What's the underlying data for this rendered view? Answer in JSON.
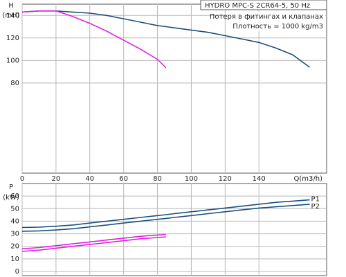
{
  "chart_data": [
    {
      "type": "line",
      "title": "HYDRO MPC-S 2CR64-5, 50 Hz",
      "annotations": [
        "Потеря в фитингах и клапанах",
        "Плотность = 1000 kg/m3"
      ],
      "y_label": "H",
      "y_unit": "(mH)",
      "x_label": "Q(m3/h)",
      "x": [
        0,
        10,
        20,
        30,
        40,
        50,
        60,
        70,
        80,
        85,
        90,
        100,
        110,
        120,
        130,
        140,
        150,
        160,
        170
      ],
      "xlim": [
        0,
        180
      ],
      "xticks": [
        0,
        20,
        40,
        60,
        80,
        100,
        120,
        140
      ],
      "ylim": [
        0,
        150
      ],
      "yticks": [
        80,
        100,
        120,
        140
      ],
      "grid": true,
      "series": [
        {
          "color": "#1b4f7e",
          "values": [
            143,
            144,
            144,
            143,
            142,
            140,
            137,
            134,
            131,
            130,
            129,
            127,
            125,
            122,
            119,
            116,
            111,
            105,
            94
          ]
        },
        {
          "color": "#e020e0",
          "values": [
            143,
            144,
            144,
            139,
            133,
            126,
            118,
            110,
            101,
            93.5,
            null,
            null,
            null,
            null,
            null,
            null,
            null,
            null,
            null
          ]
        }
      ]
    },
    {
      "type": "line",
      "y_label": "P",
      "y_unit": "(kW)",
      "x": [
        0,
        10,
        20,
        30,
        40,
        50,
        60,
        70,
        80,
        85,
        90,
        100,
        110,
        120,
        130,
        140,
        150,
        160,
        170
      ],
      "xlim": [
        0,
        180
      ],
      "ylim": [
        0,
        70
      ],
      "yticks": [
        0,
        10,
        20,
        30,
        40,
        50,
        60
      ],
      "grid": true,
      "series": [
        {
          "name": "P1",
          "color": "#1b4f7e",
          "values": [
            35,
            35.3,
            36,
            37,
            38.5,
            40,
            41.5,
            43,
            44.5,
            45.2,
            46,
            47.5,
            49,
            50.5,
            52,
            53.5,
            55,
            56,
            57
          ]
        },
        {
          "name": "P2",
          "color": "#1b4f7e",
          "values": [
            32,
            32.3,
            33,
            34,
            35.5,
            37,
            38.5,
            40,
            41.5,
            42.2,
            43,
            44.5,
            46,
            47.5,
            49,
            50.5,
            51.5,
            52.5,
            53.5
          ]
        },
        {
          "color": "#e020e0",
          "values": [
            18,
            19,
            20.5,
            22,
            23.5,
            25,
            26.5,
            28,
            29,
            29.5,
            null,
            null,
            null,
            null,
            null,
            null,
            null,
            null,
            null
          ]
        },
        {
          "color": "#e020e0",
          "values": [
            16,
            17,
            18.5,
            20,
            21.5,
            23,
            24.5,
            26,
            27,
            27.5,
            null,
            null,
            null,
            null,
            null,
            null,
            null,
            null,
            null
          ]
        }
      ]
    }
  ]
}
